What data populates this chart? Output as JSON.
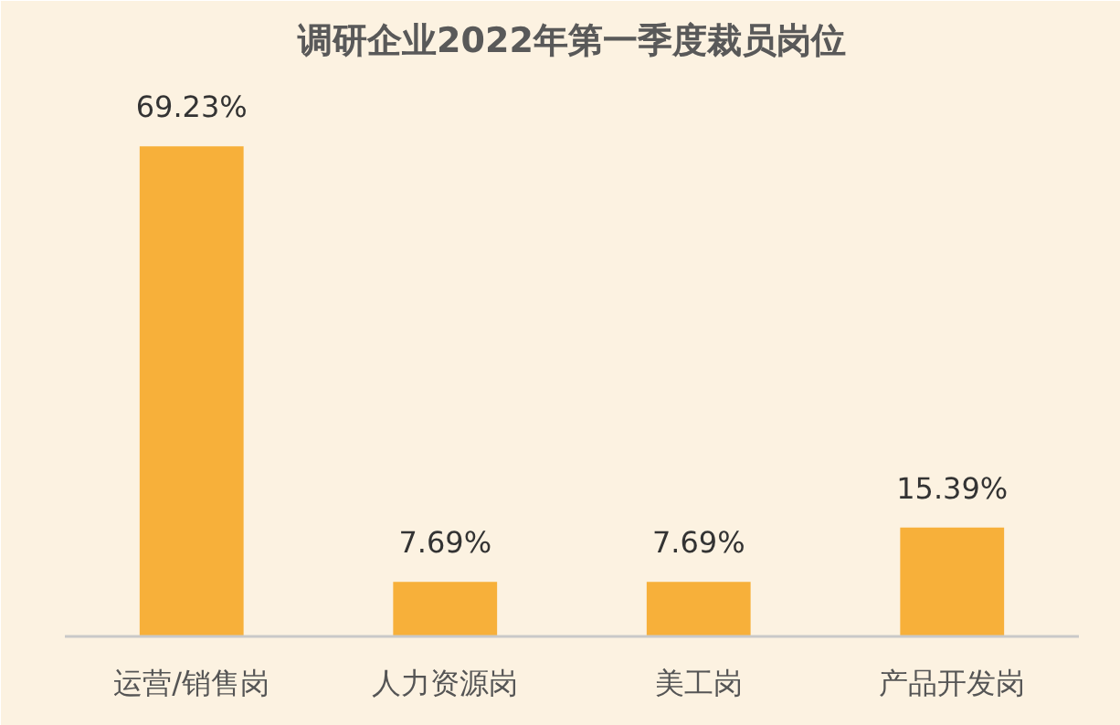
{
  "chart_data": {
    "type": "bar",
    "title": "调研企业2022年第一季度裁员岗位",
    "categories": [
      "运营/销售岗",
      "人力资源岗",
      "美工岗",
      "产品开发岗"
    ],
    "values": [
      69.23,
      7.69,
      7.69,
      15.39
    ],
    "value_labels": [
      "69.23%",
      "7.69%",
      "7.69%",
      "15.39%"
    ],
    "color": "#f7b03a"
  }
}
